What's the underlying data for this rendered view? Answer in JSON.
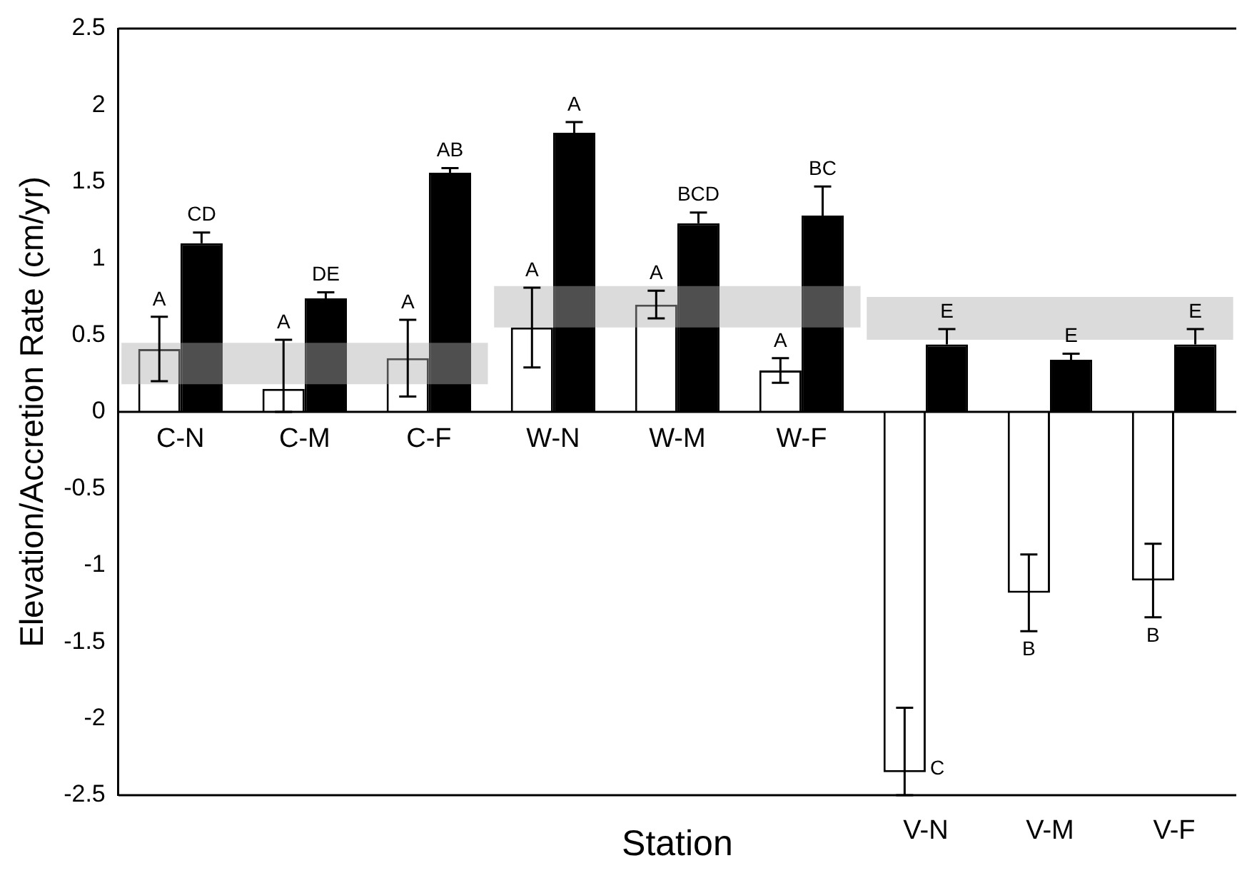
{
  "chart_data": {
    "type": "bar",
    "xlabel": "Station",
    "ylabel": "Elevation/Accretion Rate (cm/yr)",
    "categories": [
      "C-N",
      "C-M",
      "C-F",
      "W-N",
      "W-M",
      "W-F",
      "V-N",
      "V-M",
      "V-F"
    ],
    "series": [
      {
        "color": "#ffffff",
        "values": [
          0.41,
          0.15,
          0.35,
          0.55,
          0.7,
          0.27,
          -2.35,
          -1.18,
          -1.1
        ],
        "errors": [
          0.21,
          [
            0,
            0.47
          ],
          0.25,
          0.26,
          0.09,
          0.08,
          [
            -2.5,
            -1.93
          ],
          0.25,
          0.24
        ],
        "value_labels": [
          "A",
          "A",
          "A",
          "A",
          "A",
          "A",
          "C",
          "B",
          "B"
        ]
      },
      {
        "color": "#000000",
        "values": [
          1.1,
          0.74,
          1.56,
          1.82,
          1.23,
          1.28,
          0.44,
          0.34,
          0.44
        ],
        "errors": [
          [
            1.1,
            1.17
          ],
          [
            0.74,
            0.78
          ],
          [
            1.56,
            1.59
          ],
          [
            1.82,
            1.89
          ],
          [
            1.23,
            1.3
          ],
          [
            1.28,
            1.47
          ],
          [
            0.44,
            0.54
          ],
          [
            0.34,
            0.38
          ],
          [
            0.44,
            0.54
          ]
        ],
        "value_labels": [
          "CD",
          "DE",
          "AB",
          "A",
          "BCD",
          "BC",
          "E",
          "E",
          "E"
        ]
      }
    ],
    "bands": [
      {
        "axis": "y",
        "from": 0.18,
        "to": 0.45,
        "color": "#b0b0b0"
      },
      {
        "axis": "y",
        "from": 0.55,
        "to": 0.82,
        "color": "#b0b0b0"
      },
      {
        "axis": "y",
        "from": 0.47,
        "to": 0.75,
        "color": "#b0b0b0"
      }
    ],
    "ylim": [
      -2.5,
      2.5
    ],
    "yticks": [
      -2.5,
      -2,
      -1.5,
      -1,
      -0.5,
      0,
      0.5,
      1,
      1.5,
      2,
      2.5
    ],
    "grid": false,
    "legend": false
  }
}
